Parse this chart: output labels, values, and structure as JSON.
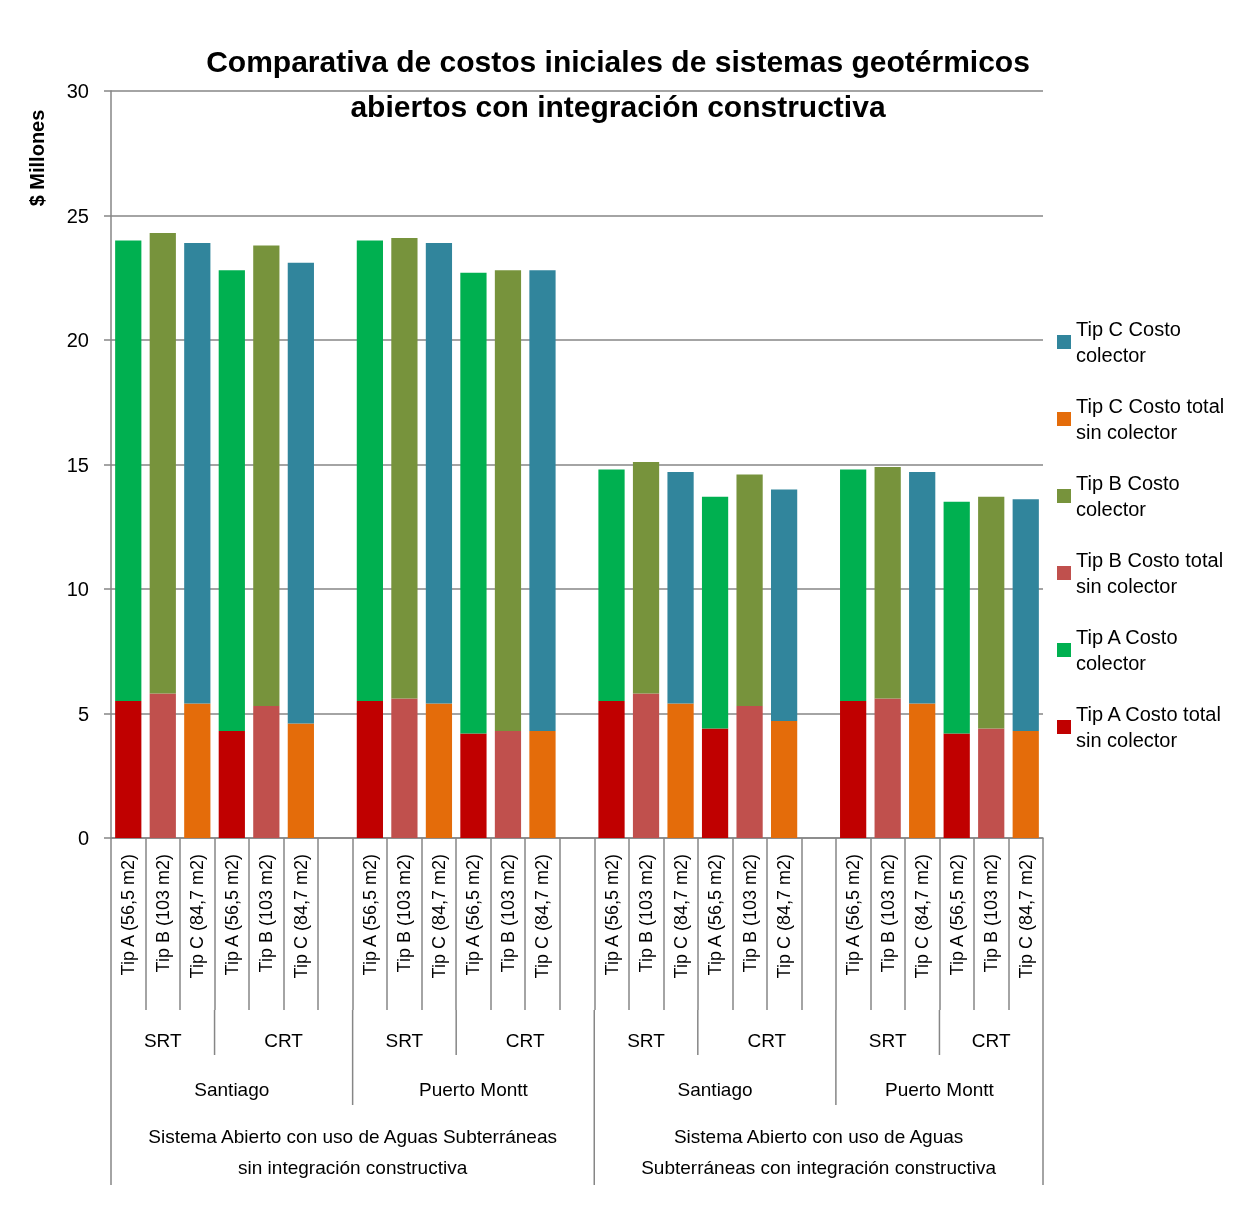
{
  "chart_data": {
    "type": "bar",
    "title": "Comparativa de costos iniciales de sistemas geotérmicos abiertos con integración constructiva",
    "ylabel": "$ Millones",
    "categories": [
      "Tip A (56,5 m2)",
      "Tip B (103 m2)",
      "Tip C (84,7 m2)",
      "Tip A (56,5 m2)",
      "Tip B (103 m2)",
      "Tip C (84,7 m2)",
      null,
      "Tip A (56,5 m2)",
      "Tip B (103 m2)",
      "Tip C (84,7 m2)",
      "Tip A (56,5 m2)",
      "Tip B (103 m2)",
      "Tip C (84,7 m2)",
      null,
      "Tip A (56,5 m2)",
      "Tip B (103 m2)",
      "Tip C (84,7 m2)",
      "Tip A (56,5 m2)",
      "Tip B (103 m2)",
      "Tip C (84,7 m2)",
      null,
      "Tip A (56,5 m2)",
      "Tip B (103 m2)",
      "Tip C (84,7 m2)",
      "Tip A (56,5 m2)",
      "Tip B (103 m2)",
      "Tip C (84,7 m2)"
    ],
    "series": [
      {
        "name": "Tip A Costo total sin colector",
        "color": "#c00000",
        "values": [
          5.5,
          null,
          null,
          4.3,
          null,
          null,
          null,
          5.5,
          null,
          null,
          4.2,
          null,
          null,
          null,
          5.5,
          null,
          null,
          4.4,
          null,
          null,
          null,
          5.5,
          null,
          null,
          4.2,
          null,
          null
        ]
      },
      {
        "name": "Tip A Costo colector",
        "color": "#00b050",
        "values": [
          18.5,
          null,
          null,
          18.5,
          null,
          null,
          null,
          18.5,
          null,
          null,
          18.5,
          null,
          null,
          null,
          9.3,
          null,
          null,
          9.3,
          null,
          null,
          null,
          9.3,
          null,
          null,
          9.3,
          null,
          null
        ]
      },
      {
        "name": "Tip B Costo total sin colector",
        "color": "#c0504d",
        "values": [
          null,
          5.8,
          null,
          null,
          5.3,
          null,
          null,
          null,
          5.6,
          null,
          null,
          4.3,
          null,
          null,
          null,
          5.8,
          null,
          null,
          5.3,
          null,
          null,
          null,
          5.6,
          null,
          null,
          4.4,
          null
        ]
      },
      {
        "name": "Tip B Costo colector",
        "color": "#77933c",
        "values": [
          null,
          18.5,
          null,
          null,
          18.5,
          null,
          null,
          null,
          18.5,
          null,
          null,
          18.5,
          null,
          null,
          null,
          9.3,
          null,
          null,
          9.3,
          null,
          null,
          null,
          9.3,
          null,
          null,
          9.3,
          null
        ]
      },
      {
        "name": "Tip C Costo total sin colector",
        "color": "#e46c0a",
        "values": [
          null,
          null,
          5.4,
          null,
          null,
          4.6,
          null,
          null,
          null,
          5.4,
          null,
          null,
          4.3,
          null,
          null,
          null,
          5.4,
          null,
          null,
          4.7,
          null,
          null,
          null,
          5.4,
          null,
          null,
          4.3
        ]
      },
      {
        "name": "Tip C Costo colector",
        "color": "#31859c",
        "values": [
          null,
          null,
          18.5,
          null,
          null,
          18.5,
          null,
          null,
          null,
          18.5,
          null,
          null,
          18.5,
          null,
          null,
          null,
          9.3,
          null,
          null,
          9.3,
          null,
          null,
          null,
          9.3,
          null,
          null,
          9.3
        ]
      }
    ],
    "stacked": true,
    "ylim": [
      0,
      30
    ],
    "yticks": [
      0,
      5,
      10,
      15,
      20,
      25,
      30
    ],
    "grid": "y",
    "legend": "right",
    "annotations": [
      "SRT",
      "CRT",
      "SRT",
      "CRT",
      "SRT",
      "CRT",
      "SRT",
      "CRT",
      "Santiago",
      "Puerto Montt",
      "Santiago",
      "Puerto Montt",
      "Sistema Abierto con uso de Aguas Subterráneas sin integración constructiva",
      "Sistema Abierto con uso de Aguas Subterráneas con integración constructiva"
    ]
  }
}
